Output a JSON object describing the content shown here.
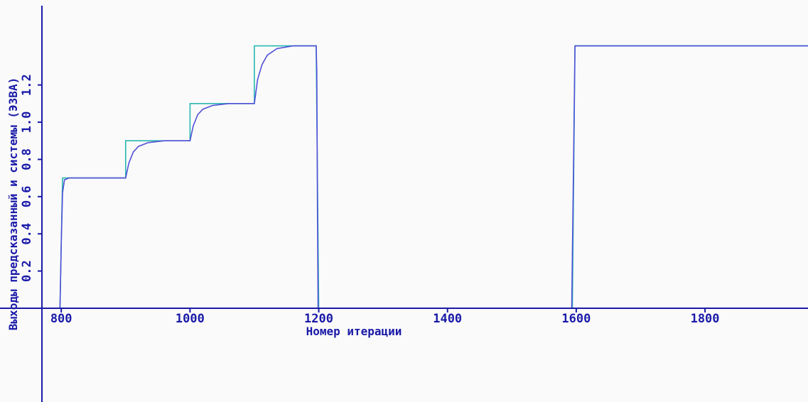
{
  "chart_data": {
    "type": "line",
    "xlabel": "Номер итерации",
    "ylabel": "Выходы предсказанный и системы (ЭЗВА)",
    "xlim": [
      770,
      1960
    ],
    "ylim": [
      0,
      1.42
    ],
    "x_ticks": [
      800,
      1000,
      1200,
      1400,
      1600,
      1800
    ],
    "x_tick_labels": [
      "800",
      "1000",
      "1200",
      "1400",
      "1600",
      "1800"
    ],
    "y_ticks": [
      0.2,
      0.4,
      0.6,
      0.8,
      1.0,
      1.2
    ],
    "y_tick_labels": [
      "0.2",
      "0.4",
      "0.6",
      "0.8",
      "1.0",
      "1.2"
    ],
    "grid": false,
    "legend": "none",
    "series": [
      {
        "color": "#2ab8b0",
        "points": [
          [
            770,
            0
          ],
          [
            798,
            0
          ],
          [
            802,
            0.7
          ],
          [
            900,
            0.7
          ],
          [
            900,
            0.9
          ],
          [
            1000,
            0.9
          ],
          [
            1000,
            1.1
          ],
          [
            1100,
            1.1
          ],
          [
            1100,
            1.41
          ],
          [
            1196,
            1.41
          ],
          [
            1200,
            0
          ],
          [
            1594,
            0
          ],
          [
            1598,
            1.41
          ],
          [
            1960,
            1.41
          ]
        ]
      },
      {
        "color": "#5050d8",
        "points": [
          [
            770,
            0
          ],
          [
            798,
            0
          ],
          [
            800,
            0.35
          ],
          [
            802,
            0.62
          ],
          [
            805,
            0.69
          ],
          [
            812,
            0.7
          ],
          [
            900,
            0.7
          ],
          [
            905,
            0.78
          ],
          [
            912,
            0.84
          ],
          [
            920,
            0.87
          ],
          [
            935,
            0.89
          ],
          [
            960,
            0.9
          ],
          [
            1000,
            0.9
          ],
          [
            1005,
            0.98
          ],
          [
            1012,
            1.04
          ],
          [
            1020,
            1.07
          ],
          [
            1035,
            1.09
          ],
          [
            1060,
            1.1
          ],
          [
            1100,
            1.1
          ],
          [
            1105,
            1.23
          ],
          [
            1112,
            1.31
          ],
          [
            1120,
            1.36
          ],
          [
            1135,
            1.395
          ],
          [
            1160,
            1.41
          ],
          [
            1196,
            1.41
          ],
          [
            1197,
            1.27
          ],
          [
            1198,
            0.55
          ],
          [
            1199,
            0
          ],
          [
            1593,
            0
          ],
          [
            1596,
            0.85
          ],
          [
            1598,
            1.41
          ],
          [
            1960,
            1.41
          ]
        ]
      }
    ]
  },
  "colors": {
    "background": "#fafafa",
    "axis": "#1a1aa8",
    "text": "#1a1aa8"
  }
}
